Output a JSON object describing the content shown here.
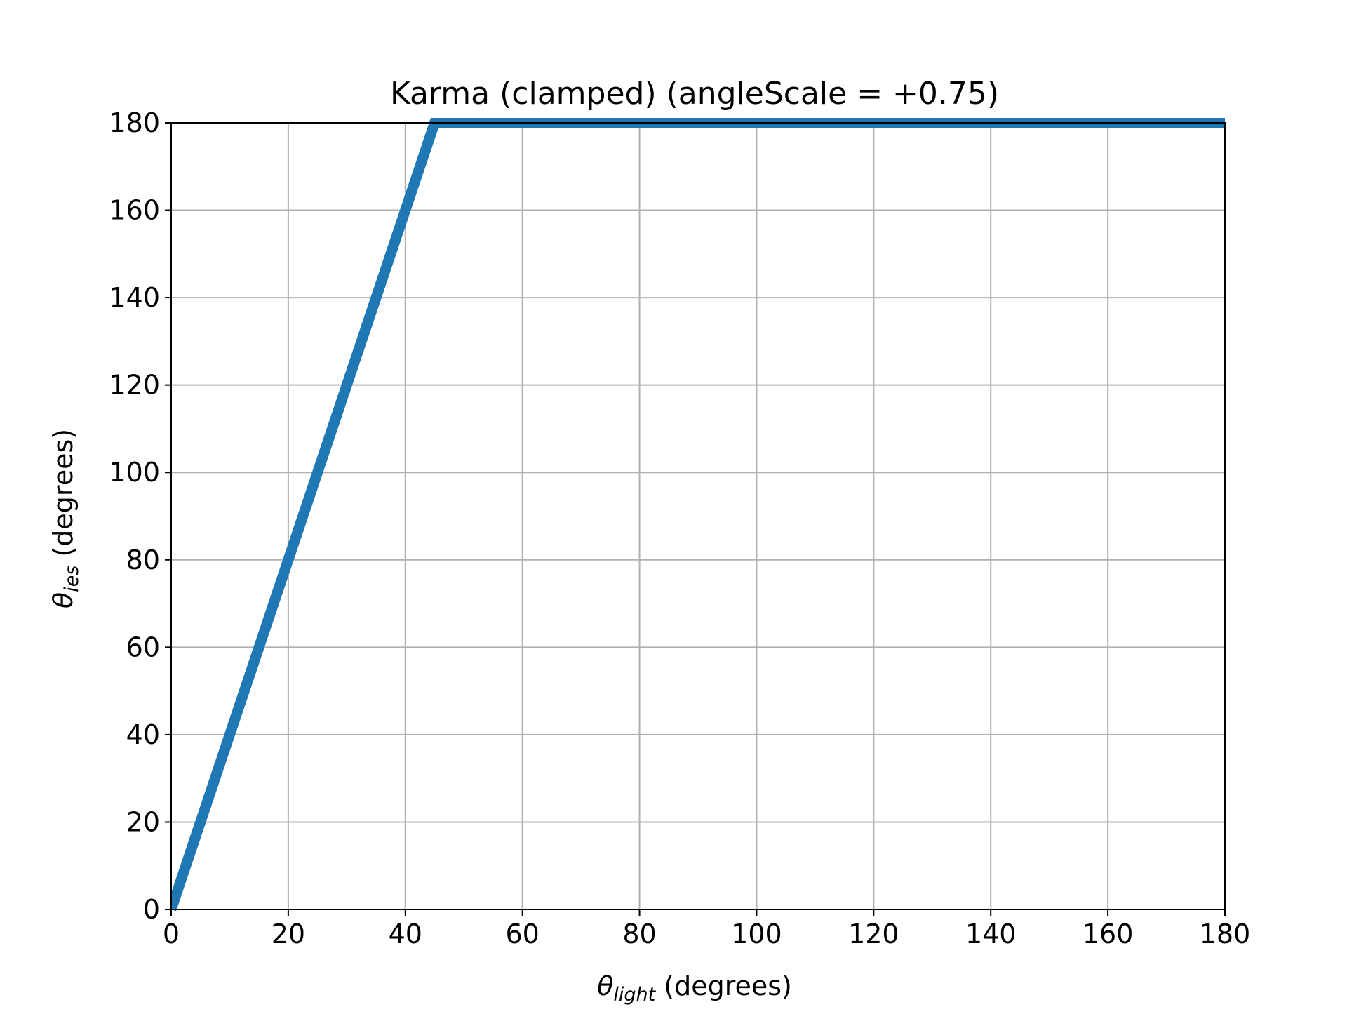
{
  "chart_data": {
    "type": "line",
    "title": "Karma (clamped) (angleScale = +0.75)",
    "xlabel": {
      "symbol": "θ",
      "subscript": "light",
      "suffix": " (degrees)"
    },
    "ylabel": {
      "symbol": "θ",
      "subscript": "ies",
      "suffix": " (degrees)"
    },
    "xlim": [
      0,
      180
    ],
    "ylim": [
      0,
      180
    ],
    "xticks": [
      0,
      20,
      40,
      60,
      80,
      100,
      120,
      140,
      160,
      180
    ],
    "yticks": [
      0,
      20,
      40,
      60,
      80,
      100,
      120,
      140,
      160,
      180
    ],
    "grid": true,
    "series": [
      {
        "color": "#1f77b4",
        "x": [
          0,
          45,
          180
        ],
        "y": [
          0,
          180,
          180
        ]
      }
    ]
  }
}
